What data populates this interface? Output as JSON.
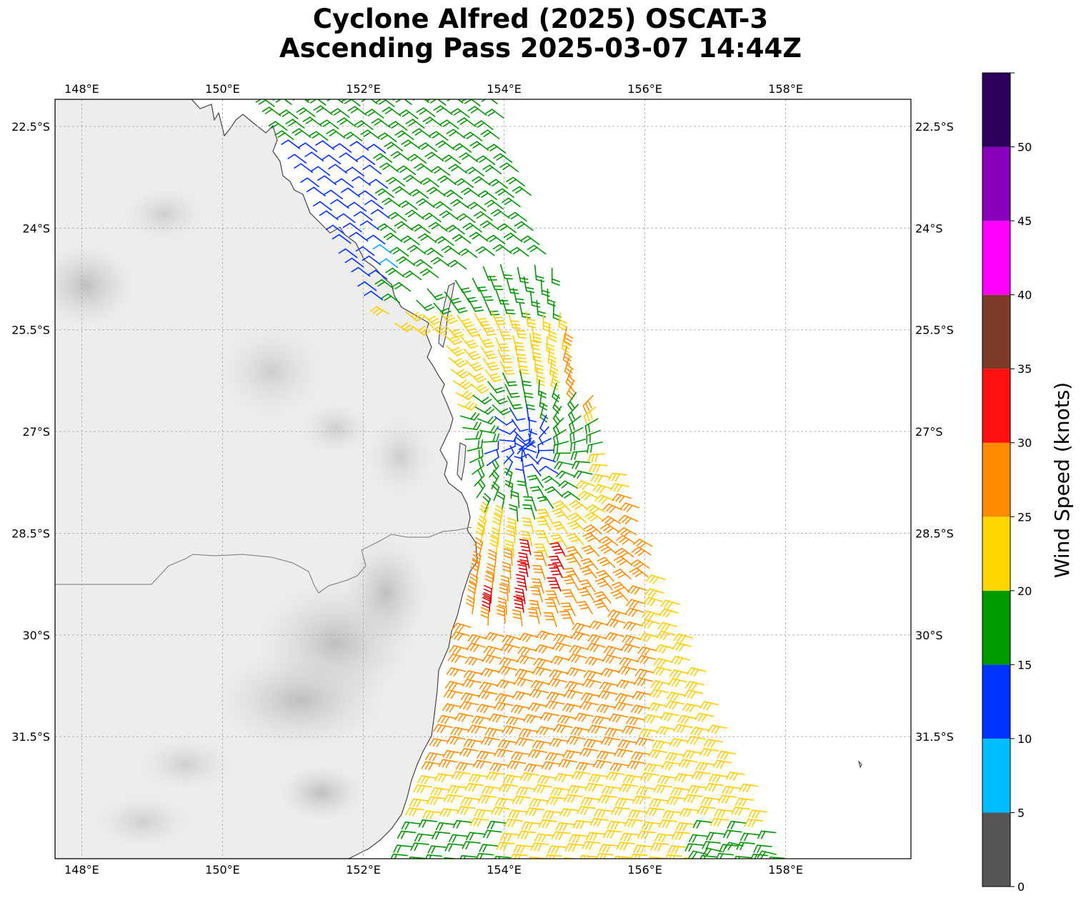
{
  "title": {
    "line1": "Cyclone Alfred (2025) OSCAT-3",
    "line2": "Ascending Pass 2025-03-07 14:44Z"
  },
  "map": {
    "lon_range": [
      147.62,
      159.78
    ],
    "lat_range": [
      -33.3,
      -22.1
    ],
    "lon_ticks": [
      148,
      150,
      152,
      154,
      156,
      158
    ],
    "lon_labels": [
      "148°E",
      "150°E",
      "152°E",
      "154°E",
      "156°E",
      "158°E"
    ],
    "lat_ticks": [
      -22.5,
      -24,
      -25.5,
      -27,
      -28.5,
      -30,
      -31.5
    ],
    "lat_labels": [
      "22.5°S",
      "24°S",
      "25.5°S",
      "27°S",
      "28.5°S",
      "30°S",
      "31.5°S"
    ],
    "gridlines": true,
    "background": "grayscale terrain over land, white ocean"
  },
  "colorbar": {
    "label": "Wind Speed (knots)",
    "tick_labels": [
      "0",
      "5",
      "10",
      "15",
      "20",
      "25",
      "30",
      "35",
      "40",
      "45",
      "50"
    ],
    "bins": [
      {
        "min": 0,
        "max": 5,
        "color": "#555555"
      },
      {
        "min": 5,
        "max": 10,
        "color": "#00bfff"
      },
      {
        "min": 10,
        "max": 15,
        "color": "#0033ff"
      },
      {
        "min": 15,
        "max": 20,
        "color": "#009900"
      },
      {
        "min": 20,
        "max": 25,
        "color": "#ffd600"
      },
      {
        "min": 25,
        "max": 30,
        "color": "#ff8c00"
      },
      {
        "min": 30,
        "max": 35,
        "color": "#ff1010"
      },
      {
        "min": 35,
        "max": 40,
        "color": "#7f3b2a"
      },
      {
        "min": 40,
        "max": 45,
        "color": "#ff00ff"
      },
      {
        "min": 45,
        "max": 50,
        "color": "#8800bb"
      },
      {
        "min": 50,
        "max": 55,
        "color": "#2b005b"
      }
    ]
  },
  "barb_colors": {
    "red": "#dd0000",
    "orange": "#ff8c00",
    "yellow": "#ffcc00",
    "green": "#009900",
    "blue": "#0033ff",
    "cyan": "#00aaff"
  }
}
